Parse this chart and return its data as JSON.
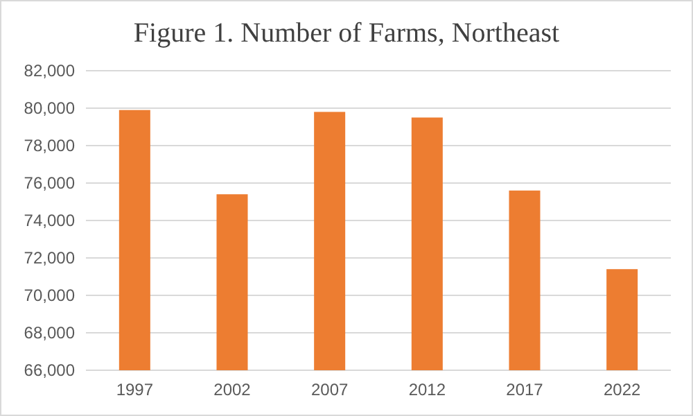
{
  "chart_data": {
    "type": "bar",
    "title": "Figure 1. Number of Farms, Northeast",
    "categories": [
      "1997",
      "2002",
      "2007",
      "2012",
      "2017",
      "2022"
    ],
    "values": [
      79900,
      75400,
      79800,
      79500,
      75600,
      71400
    ],
    "color": "#ed7d31",
    "ylim": [
      66000,
      82000
    ],
    "yticks": [
      {
        "value": 66000,
        "label": "66,000"
      },
      {
        "value": 68000,
        "label": "68,000"
      },
      {
        "value": 70000,
        "label": "70,000"
      },
      {
        "value": 72000,
        "label": "72,000"
      },
      {
        "value": 74000,
        "label": "74,000"
      },
      {
        "value": 76000,
        "label": "76,000"
      },
      {
        "value": 78000,
        "label": "78,000"
      },
      {
        "value": 80000,
        "label": "80,000"
      },
      {
        "value": 82000,
        "label": "82,000"
      }
    ],
    "grid": "y"
  }
}
